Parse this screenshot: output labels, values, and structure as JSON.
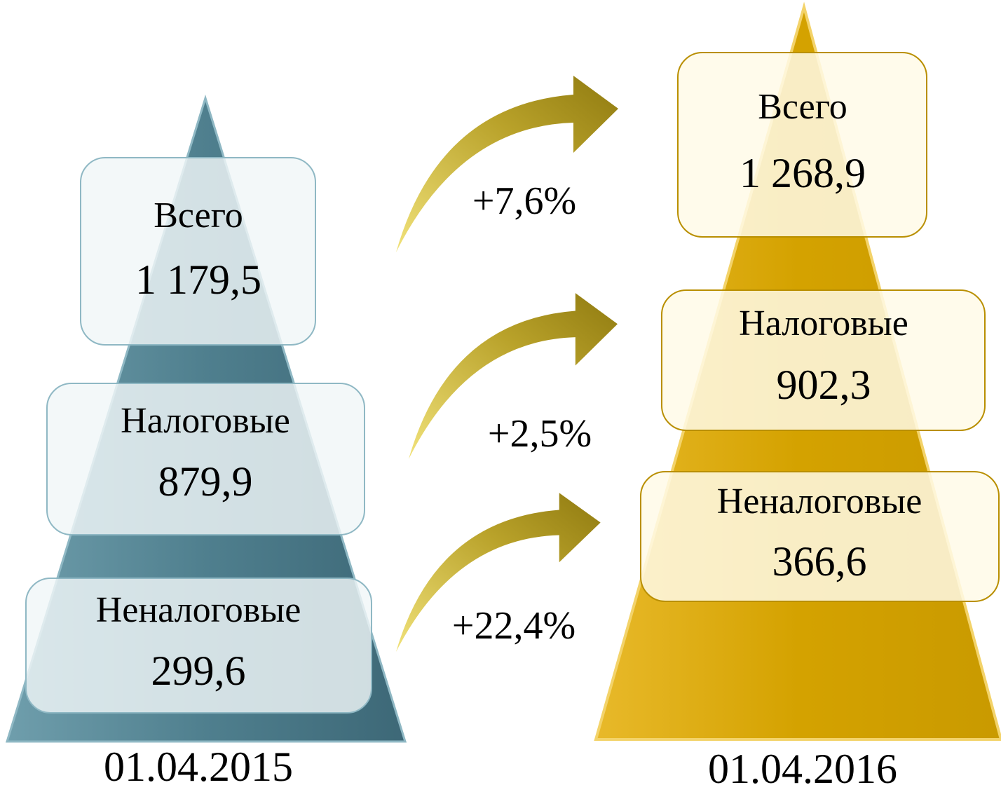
{
  "left": {
    "date": "01.04.2015",
    "items": [
      {
        "label": "Всего",
        "value": "1 179,5"
      },
      {
        "label": "Налоговые",
        "value": "879,9"
      },
      {
        "label": "Неналоговые",
        "value": "299,6"
      }
    ]
  },
  "right": {
    "date": "01.04.2016",
    "items": [
      {
        "label": "Всего",
        "value": "1 268,9"
      },
      {
        "label": "Налоговые",
        "value": "902,3"
      },
      {
        "label": "Неналоговые",
        "value": "366,6"
      }
    ]
  },
  "changes": [
    "+7,6%",
    "+2,5%",
    "+22,4%"
  ]
}
